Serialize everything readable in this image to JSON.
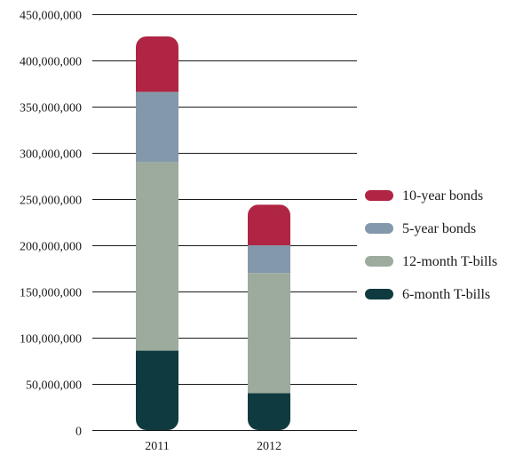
{
  "chart_data": {
    "type": "bar",
    "stacked": true,
    "categories": [
      "2011",
      "2012"
    ],
    "series": [
      {
        "name": "6-month T-bills",
        "color": "#0f3a3f",
        "values": [
          86000000,
          40000000
        ]
      },
      {
        "name": "12-month T-bills",
        "color": "#9dab9e",
        "values": [
          204000000,
          130000000
        ]
      },
      {
        "name": "5-year bonds",
        "color": "#8498ab",
        "values": [
          76000000,
          30000000
        ]
      },
      {
        "name": "10-year bonds",
        "color": "#b02543",
        "values": [
          60000000,
          44000000
        ]
      }
    ],
    "ylim": [
      0,
      450000000
    ],
    "yticks": [
      {
        "value": 0,
        "label": "0"
      },
      {
        "value": 50000000,
        "label": "50,000,000"
      },
      {
        "value": 100000000,
        "label": "100,000,000"
      },
      {
        "value": 150000000,
        "label": "150,000,000"
      },
      {
        "value": 200000000,
        "label": "200,000,000"
      },
      {
        "value": 250000000,
        "label": "250,000,000"
      },
      {
        "value": 300000000,
        "label": "300,000,000"
      },
      {
        "value": 350000000,
        "label": "350,000,000"
      },
      {
        "value": 400000000,
        "label": "400,000,000"
      },
      {
        "value": 450000000,
        "label": "450,000,000"
      }
    ],
    "legend": {
      "position": "right",
      "order": [
        "10-year bonds",
        "5-year bonds",
        "12-month T-bills",
        "6-month T-bills"
      ]
    },
    "grid": true,
    "gridline_color": "#1a1a1a"
  }
}
